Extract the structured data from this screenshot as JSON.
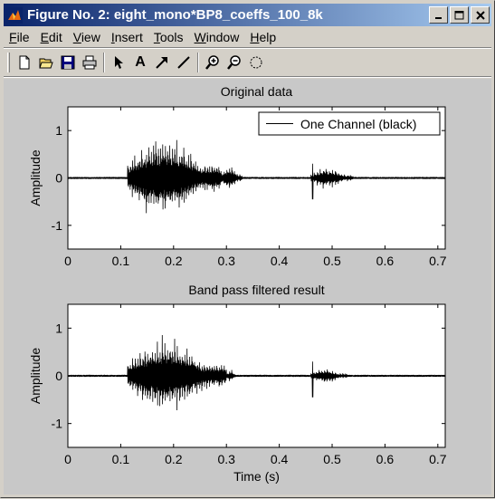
{
  "window": {
    "title": "Figure No. 2: eight_mono*BP8_coeffs_100_8k"
  },
  "menu": [
    {
      "label": "File",
      "key": "F",
      "rest": "ile"
    },
    {
      "label": "Edit",
      "key": "E",
      "rest": "dit"
    },
    {
      "label": "View",
      "key": "V",
      "rest": "iew"
    },
    {
      "label": "Insert",
      "key": "I",
      "rest": "nsert"
    },
    {
      "label": "Tools",
      "key": "T",
      "rest": "ools"
    },
    {
      "label": "Window",
      "key": "W",
      "rest": "indow"
    },
    {
      "label": "Help",
      "key": "H",
      "rest": "elp"
    }
  ],
  "toolbar": {
    "icons": [
      "new-file-icon",
      "open-folder-icon",
      "save-icon",
      "print-icon",
      "select-arrow-icon",
      "insert-text-icon",
      "insert-arrow-icon",
      "insert-line-icon",
      "zoom-in-icon",
      "zoom-out-icon",
      "rotate-3d-icon"
    ],
    "text_tool_label": "A"
  },
  "chart_data": [
    {
      "type": "line",
      "title": "Original data",
      "xlabel": "",
      "ylabel": "Amplitude",
      "xlim": [
        0,
        0.714
      ],
      "ylim": [
        -1.5,
        1.5
      ],
      "xticks": [
        "0",
        "0.1",
        "0.2",
        "0.3",
        "0.4",
        "0.5",
        "0.6",
        "0.7"
      ],
      "yticks": [
        "-1",
        "0",
        "1"
      ],
      "legend": {
        "placement": "top-right",
        "entries": [
          "One Channel (black)"
        ]
      },
      "series": [
        {
          "name": "One Channel (black)",
          "color": "#000000"
        }
      ],
      "segments": [
        {
          "x0": 0.113,
          "x1": 0.29,
          "amp_peak": 1.0,
          "pulses": 40
        },
        {
          "x0": 0.29,
          "x1": 0.33,
          "amp_peak": 0.3,
          "pulses": 8
        },
        {
          "x0": 0.46,
          "x1": 0.54,
          "amp_peak": 0.25,
          "pulses": 14
        }
      ],
      "spike_x": 0.463
    },
    {
      "type": "line",
      "title": "Band pass filtered result",
      "xlabel": "Time (s)",
      "ylabel": "Amplitude",
      "xlim": [
        0,
        0.714
      ],
      "ylim": [
        -1.5,
        1.5
      ],
      "xticks": [
        "0",
        "0.1",
        "0.2",
        "0.3",
        "0.4",
        "0.5",
        "0.6",
        "0.7"
      ],
      "yticks": [
        "-1",
        "0",
        "1"
      ],
      "series": [
        {
          "name": "",
          "color": "#000000"
        }
      ],
      "segments": [
        {
          "x0": 0.113,
          "x1": 0.3,
          "amp_peak": 0.9,
          "pulses": 40
        },
        {
          "x0": 0.3,
          "x1": 0.32,
          "amp_peak": 0.15,
          "pulses": 4
        },
        {
          "x0": 0.46,
          "x1": 0.53,
          "amp_peak": 0.18,
          "pulses": 14
        }
      ],
      "spike_x": 0.463
    }
  ]
}
